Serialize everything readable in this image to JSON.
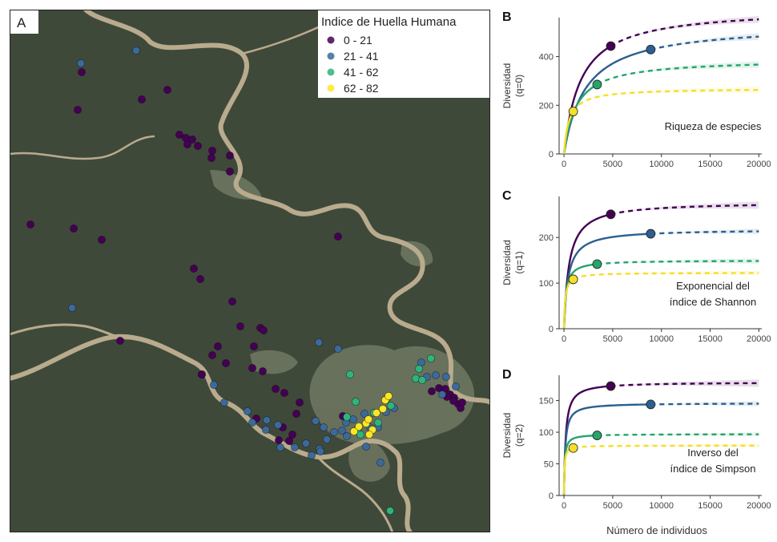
{
  "chart_data": [
    {
      "panel": "A",
      "type": "scatter",
      "legend": {
        "title": "Indice de Huella Humana",
        "placement": "top-right",
        "entries": [
          {
            "label": "0 - 21",
            "color": "#440154"
          },
          {
            "label": "21 - 41",
            "color": "#3b6a9a"
          },
          {
            "label": "41 - 62",
            "color": "#2fb47c"
          },
          {
            "label": "62 - 82",
            "color": "#fde725"
          }
        ]
      },
      "colors": {
        "background": "#3f493a",
        "river": "#b9ab8d",
        "cleared": "#8a9178"
      },
      "points": {
        "0": [
          [
            90,
            78
          ],
          [
            85,
            125
          ],
          [
            165,
            112
          ],
          [
            197,
            100
          ],
          [
            212,
            156
          ],
          [
            220,
            160
          ],
          [
            228,
            162
          ],
          [
            235,
            170
          ],
          [
            222,
            168
          ],
          [
            253,
            176
          ],
          [
            252,
            185
          ],
          [
            275,
            182
          ],
          [
            275,
            202
          ],
          [
            26,
            268
          ],
          [
            80,
            273
          ],
          [
            115,
            287
          ],
          [
            230,
            323
          ],
          [
            238,
            336
          ],
          [
            278,
            364
          ],
          [
            288,
            395
          ],
          [
            313,
            397
          ],
          [
            317,
            400
          ],
          [
            260,
            420
          ],
          [
            253,
            431
          ],
          [
            270,
            441
          ],
          [
            305,
            420
          ],
          [
            303,
            447
          ],
          [
            316,
            451
          ],
          [
            240,
            455
          ],
          [
            332,
            473
          ],
          [
            343,
            478
          ],
          [
            362,
            490
          ],
          [
            308,
            510
          ],
          [
            353,
            530
          ],
          [
            336,
            537
          ],
          [
            341,
            521
          ],
          [
            349,
            538
          ],
          [
            527,
            476
          ],
          [
            536,
            472
          ],
          [
            544,
            473
          ],
          [
            550,
            480
          ],
          [
            555,
            484
          ],
          [
            560,
            492
          ],
          [
            563,
            497
          ],
          [
            554,
            488
          ],
          [
            546,
            483
          ],
          [
            565,
            490
          ],
          [
            410,
            283
          ],
          [
            138,
            413
          ],
          [
            240,
            455
          ],
          [
            416,
            507
          ],
          [
            358,
            504
          ]
        ],
        "1": [
          [
            89,
            67
          ],
          [
            158,
            51
          ],
          [
            78,
            372
          ],
          [
            386,
            415
          ],
          [
            410,
            423
          ],
          [
            514,
            440
          ],
          [
            532,
            456
          ],
          [
            545,
            458
          ],
          [
            521,
            458
          ],
          [
            255,
            468
          ],
          [
            268,
            490
          ],
          [
            297,
            501
          ],
          [
            303,
            515
          ],
          [
            321,
            512
          ],
          [
            320,
            524
          ],
          [
            335,
            518
          ],
          [
            338,
            546
          ],
          [
            356,
            546
          ],
          [
            370,
            541
          ],
          [
            377,
            556
          ],
          [
            387,
            548
          ],
          [
            382,
            513
          ],
          [
            392,
            521
          ],
          [
            396,
            536
          ],
          [
            405,
            527
          ],
          [
            415,
            525
          ],
          [
            420,
            515
          ],
          [
            429,
            511
          ],
          [
            443,
            504
          ],
          [
            450,
            521
          ],
          [
            460,
            521
          ],
          [
            470,
            502
          ],
          [
            480,
            497
          ],
          [
            540,
            480
          ],
          [
            557,
            470
          ],
          [
            421,
            532
          ],
          [
            445,
            545
          ],
          [
            463,
            565
          ],
          [
            388,
            551
          ]
        ],
        "2": [
          [
            421,
            508
          ],
          [
            432,
            489
          ],
          [
            438,
            530
          ],
          [
            455,
            503
          ],
          [
            460,
            515
          ],
          [
            476,
            494
          ],
          [
            471,
            485
          ],
          [
            511,
            448
          ],
          [
            507,
            460
          ],
          [
            515,
            462
          ],
          [
            475,
            625
          ],
          [
            425,
            455
          ],
          [
            435,
            522
          ],
          [
            526,
            435
          ]
        ],
        "3": [
          [
            430,
            526
          ],
          [
            445,
            516
          ],
          [
            453,
            524
          ],
          [
            466,
            498
          ],
          [
            469,
            487
          ],
          [
            458,
            503
          ],
          [
            449,
            530
          ],
          [
            473,
            482
          ],
          [
            436,
            520
          ],
          [
            448,
            511
          ]
        ]
      }
    },
    {
      "panel": "B",
      "type": "line",
      "annotation": "Riqueza de especies",
      "xlabel": "Número de individuos",
      "ylabel": "Diversidad",
      "ylabel2": "(q=0)",
      "xlim": [
        -500,
        20300
      ],
      "ylim": [
        0,
        560
      ],
      "xticks": [
        "0",
        "5000",
        "10000",
        "15000",
        "20000"
      ],
      "yticks": [
        "0",
        "200",
        "400"
      ],
      "series": [
        {
          "color": "#440154",
          "n_obs": 4800,
          "asymptote": 600,
          "halfsat": 1700,
          "end_band": 14
        },
        {
          "color": "#2b5f8f",
          "n_obs": 8900,
          "asymptote": 535,
          "halfsat": 2200,
          "end_band": 14
        },
        {
          "color": "#25a56c",
          "n_obs": 3400,
          "asymptote": 390,
          "halfsat": 1250,
          "end_band": 14
        },
        {
          "color": "#f4de28",
          "n_obs": 950,
          "asymptote": 270,
          "halfsat": 520,
          "end_band": 14
        }
      ]
    },
    {
      "panel": "C",
      "type": "line",
      "annotation": "Exponencial del",
      "annotation2": "índice de Shannon",
      "xlabel": "",
      "ylabel": "Diversidad",
      "ylabel2": "(q=1)",
      "xlim": [
        -500,
        20300
      ],
      "ylim": [
        0,
        290
      ],
      "xticks": [
        "0",
        "5000",
        "10000",
        "15000",
        "20000"
      ],
      "yticks": [
        "0",
        "100",
        "200"
      ],
      "series": [
        {
          "color": "#440154",
          "n_obs": 4800,
          "asymptote": 278,
          "halfsat": 520,
          "end_band": 8
        },
        {
          "color": "#2b5f8f",
          "n_obs": 8900,
          "asymptote": 218,
          "halfsat": 420,
          "end_band": 6
        },
        {
          "color": "#25a56c",
          "n_obs": 3400,
          "asymptote": 150,
          "halfsat": 200,
          "end_band": 6
        },
        {
          "color": "#f4de28",
          "n_obs": 950,
          "asymptote": 123,
          "halfsat": 130,
          "end_band": 5
        }
      ]
    },
    {
      "panel": "D",
      "type": "line",
      "annotation": "Inverso del",
      "annotation2": "índice de Simpson",
      "xlabel": "",
      "ylabel": "Diversidad",
      "ylabel2": "(q=2)",
      "xlim": [
        -500,
        20300
      ],
      "ylim": [
        0,
        190
      ],
      "xticks": [
        "0",
        "5000",
        "10000",
        "15000",
        "20000"
      ],
      "yticks": [
        "0",
        "50",
        "100",
        "150"
      ],
      "series": [
        {
          "color": "#440154",
          "n_obs": 4800,
          "asymptote": 179,
          "halfsat": 170,
          "end_band": 6
        },
        {
          "color": "#2b5f8f",
          "n_obs": 8900,
          "asymptote": 146,
          "halfsat": 130,
          "end_band": 4
        },
        {
          "color": "#25a56c",
          "n_obs": 3400,
          "asymptote": 97,
          "halfsat": 75,
          "end_band": 3
        },
        {
          "color": "#f4de28",
          "n_obs": 950,
          "asymptote": 79,
          "halfsat": 50,
          "end_band": 3
        }
      ]
    }
  ]
}
